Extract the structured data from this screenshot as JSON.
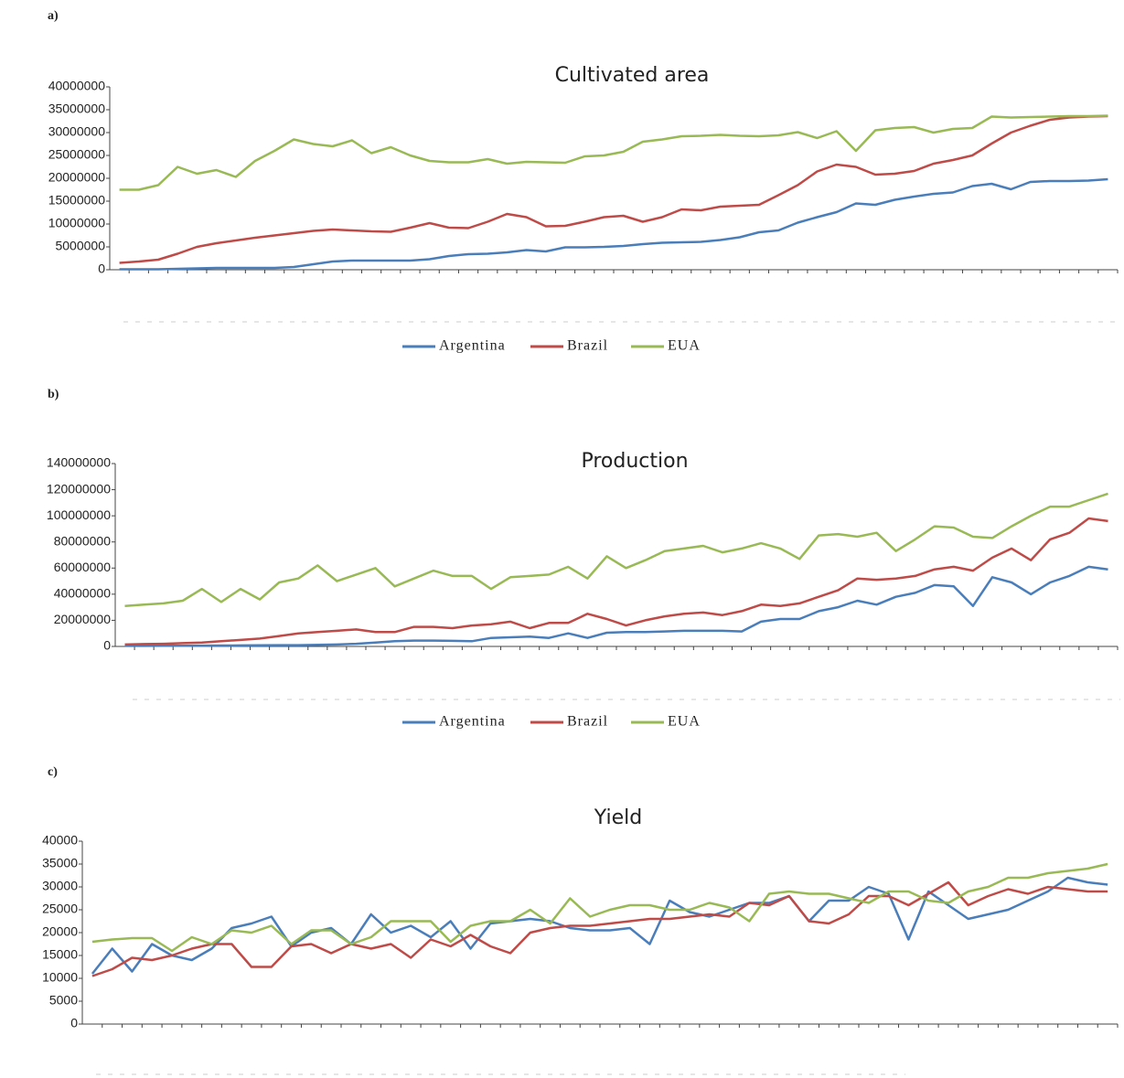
{
  "chart_data": [
    {
      "type": "line",
      "panel_label": "a)",
      "title": "Cultivated area",
      "legend": "bottom",
      "categories": [
        null,
        null,
        null,
        null,
        null,
        null,
        null,
        null,
        null,
        null,
        null,
        null,
        null,
        null,
        null,
        null,
        null,
        null,
        null,
        null,
        null,
        null,
        null,
        null,
        null,
        null,
        null,
        null,
        null,
        null,
        null,
        null,
        null,
        null,
        null,
        null,
        null,
        null,
        null,
        null,
        null,
        null,
        null,
        null,
        null,
        null,
        null,
        null,
        null,
        null,
        null,
        null
      ],
      "ylim": [
        0,
        40000000
      ],
      "yticks": [
        0,
        5000000,
        10000000,
        15000000,
        20000000,
        25000000,
        30000000,
        35000000,
        40000000
      ],
      "series": [
        {
          "name": "Argentina",
          "color": "#4a7ebb",
          "values": [
            100000,
            100000,
            100000,
            200000,
            300000,
            400000,
            400000,
            400000,
            400000,
            600000,
            1200000,
            1800000,
            2000000,
            2000000,
            2000000,
            2000000,
            2300000,
            3000000,
            3400000,
            3500000,
            3800000,
            4300000,
            4000000,
            4900000,
            4900000,
            5000000,
            5200000,
            5600000,
            5900000,
            6000000,
            6100000,
            6500000,
            7100000,
            8200000,
            8600000,
            10300000,
            11500000,
            12600000,
            14500000,
            14200000,
            15300000,
            16000000,
            16600000,
            16900000,
            18300000,
            18800000,
            17600000,
            19200000,
            19400000,
            19400000,
            19500000,
            19800000
          ]
        },
        {
          "name": "Brazil",
          "color": "#be4b48",
          "values": [
            1500000,
            1800000,
            2200000,
            3500000,
            5000000,
            5800000,
            6400000,
            7000000,
            7500000,
            8000000,
            8500000,
            8800000,
            8600000,
            8400000,
            8300000,
            9200000,
            10200000,
            9200000,
            9100000,
            10500000,
            12200000,
            11500000,
            9500000,
            9600000,
            10500000,
            11500000,
            11800000,
            10500000,
            11500000,
            13200000,
            13000000,
            13800000,
            14000000,
            14200000,
            16300000,
            18500000,
            21500000,
            23000000,
            22500000,
            20800000,
            21000000,
            21600000,
            23200000,
            24000000,
            25000000,
            27600000,
            30000000,
            31500000,
            32800000,
            33300000,
            33500000,
            33600000
          ]
        },
        {
          "name": "EUA",
          "color": "#98b954",
          "values": [
            17500000,
            17500000,
            18500000,
            22500000,
            21000000,
            21800000,
            20300000,
            23800000,
            26000000,
            28500000,
            27500000,
            27000000,
            28300000,
            25500000,
            26800000,
            25000000,
            23800000,
            23500000,
            23500000,
            24200000,
            23200000,
            23600000,
            23500000,
            23400000,
            24800000,
            25000000,
            25800000,
            28000000,
            28500000,
            29200000,
            29300000,
            29500000,
            29300000,
            29200000,
            29400000,
            30100000,
            28800000,
            30300000,
            26000000,
            30500000,
            31000000,
            31200000,
            30000000,
            30800000,
            31000000,
            33500000,
            33300000,
            33400000,
            33500000,
            33600000,
            33600000,
            33700000
          ]
        }
      ]
    },
    {
      "type": "line",
      "panel_label": "b)",
      "title": "Production",
      "legend": "bottom",
      "categories": [
        null,
        null,
        null,
        null,
        null,
        null,
        null,
        null,
        null,
        null,
        null,
        null,
        null,
        null,
        null,
        null,
        null,
        null,
        null,
        null,
        null,
        null,
        null,
        null,
        null,
        null,
        null,
        null,
        null,
        null,
        null,
        null,
        null,
        null,
        null,
        null,
        null,
        null,
        null,
        null,
        null,
        null,
        null,
        null,
        null,
        null,
        null,
        null,
        null,
        null,
        null,
        null
      ],
      "ylim": [
        0,
        140000000
      ],
      "yticks": [
        0,
        20000000,
        40000000,
        60000000,
        80000000,
        100000000,
        120000000,
        140000000
      ],
      "series": [
        {
          "name": "Argentina",
          "color": "#4a7ebb",
          "values": [
            400000,
            400000,
            500000,
            500000,
            600000,
            700000,
            800000,
            900000,
            1000000,
            1000000,
            1200000,
            1500000,
            2000000,
            3000000,
            4000000,
            4500000,
            4500000,
            4300000,
            4000000,
            6500000,
            7000000,
            7500000,
            6500000,
            10000000,
            6500000,
            10500000,
            11000000,
            11000000,
            11500000,
            12000000,
            12000000,
            12000000,
            11500000,
            19000000,
            21000000,
            21000000,
            27000000,
            30000000,
            35000000,
            32000000,
            38000000,
            41000000,
            47000000,
            46000000,
            31000000,
            53000000,
            49000000,
            40000000,
            49000000,
            54000000,
            61000000,
            59000000
          ]
        },
        {
          "name": "Brazil",
          "color": "#be4b48",
          "values": [
            1500000,
            1800000,
            2000000,
            2500000,
            3000000,
            4000000,
            5000000,
            6000000,
            8000000,
            10000000,
            11000000,
            12000000,
            13000000,
            11000000,
            11000000,
            15000000,
            15000000,
            14000000,
            16000000,
            17000000,
            19000000,
            14000000,
            18000000,
            18000000,
            25000000,
            21000000,
            16000000,
            20000000,
            23000000,
            25000000,
            26000000,
            24000000,
            27000000,
            32000000,
            31000000,
            33000000,
            38000000,
            43000000,
            52000000,
            51000000,
            52000000,
            54000000,
            59000000,
            61000000,
            58000000,
            68000000,
            75000000,
            66000000,
            82000000,
            87000000,
            98000000,
            96000000
          ]
        },
        {
          "name": "EUA",
          "color": "#98b954",
          "values": [
            31000000,
            32000000,
            33000000,
            35000000,
            44000000,
            34000000,
            44000000,
            36000000,
            49000000,
            52000000,
            62000000,
            50000000,
            55000000,
            60000000,
            46000000,
            52000000,
            58000000,
            54000000,
            54000000,
            44000000,
            53000000,
            54000000,
            55000000,
            61000000,
            52000000,
            69000000,
            60000000,
            66000000,
            73000000,
            75000000,
            77000000,
            72000000,
            75000000,
            79000000,
            75000000,
            67000000,
            85000000,
            86000000,
            84000000,
            87000000,
            73000000,
            82000000,
            92000000,
            91000000,
            84000000,
            83000000,
            92000000,
            100000000,
            107000000,
            107000000,
            112000000,
            117000000
          ]
        }
      ]
    },
    {
      "type": "line",
      "panel_label": "c)",
      "title": "Yield",
      "categories": [
        null,
        null,
        null,
        null,
        null,
        null,
        null,
        null,
        null,
        null,
        null,
        null,
        null,
        null,
        null,
        null,
        null,
        null,
        null,
        null,
        null,
        null,
        null,
        null,
        null,
        null,
        null,
        null,
        null,
        null,
        null,
        null,
        null,
        null,
        null,
        null,
        null,
        null,
        null,
        null,
        null,
        null,
        null,
        null,
        null,
        null,
        null,
        null,
        null,
        null,
        null,
        null
      ],
      "ylim": [
        0,
        40000
      ],
      "yticks": [
        0,
        5000,
        10000,
        15000,
        20000,
        25000,
        30000,
        35000,
        40000
      ],
      "series": [
        {
          "color": "#4a7ebb",
          "values": [
            11000,
            16500,
            11500,
            17500,
            15000,
            14000,
            16500,
            21000,
            22000,
            23500,
            17000,
            20000,
            21000,
            17500,
            24000,
            20000,
            21500,
            19000,
            22500,
            16500,
            22000,
            22500,
            23000,
            22500,
            21000,
            20500,
            20500,
            21000,
            17500,
            27000,
            24500,
            23500,
            25000,
            26500,
            26500,
            28000,
            22500,
            27000,
            27000,
            30000,
            28500,
            18500,
            29000,
            26000,
            23000,
            24000,
            25000,
            27000,
            29000,
            32000,
            31000,
            30500
          ]
        },
        {
          "color": "#be4b48",
          "values": [
            10500,
            12000,
            14500,
            14000,
            15000,
            16500,
            17500,
            17500,
            12500,
            12500,
            17000,
            17500,
            15500,
            17500,
            16500,
            17500,
            14500,
            18500,
            17000,
            19500,
            17000,
            15500,
            20000,
            21000,
            21500,
            21500,
            22000,
            22500,
            23000,
            23000,
            23500,
            24000,
            23500,
            26500,
            26000,
            28000,
            22500,
            22000,
            24000,
            28000,
            28000,
            26000,
            28500,
            31000,
            26000,
            28000,
            29500,
            28500,
            30000,
            29500,
            29000,
            29000
          ]
        },
        {
          "color": "#98b954",
          "values": [
            18000,
            18500,
            18800,
            18800,
            16000,
            19000,
            17500,
            20500,
            20000,
            21500,
            17500,
            20500,
            20500,
            17500,
            19000,
            22500,
            22500,
            22500,
            18000,
            21500,
            22500,
            22500,
            25000,
            22000,
            27500,
            23500,
            25000,
            26000,
            26000,
            25000,
            25000,
            26500,
            25500,
            22500,
            28500,
            29000,
            28500,
            28500,
            27500,
            26500,
            29000,
            29000,
            27000,
            26500,
            29000,
            30000,
            32000,
            32000,
            33000,
            33500,
            34000,
            35000
          ]
        }
      ]
    }
  ]
}
